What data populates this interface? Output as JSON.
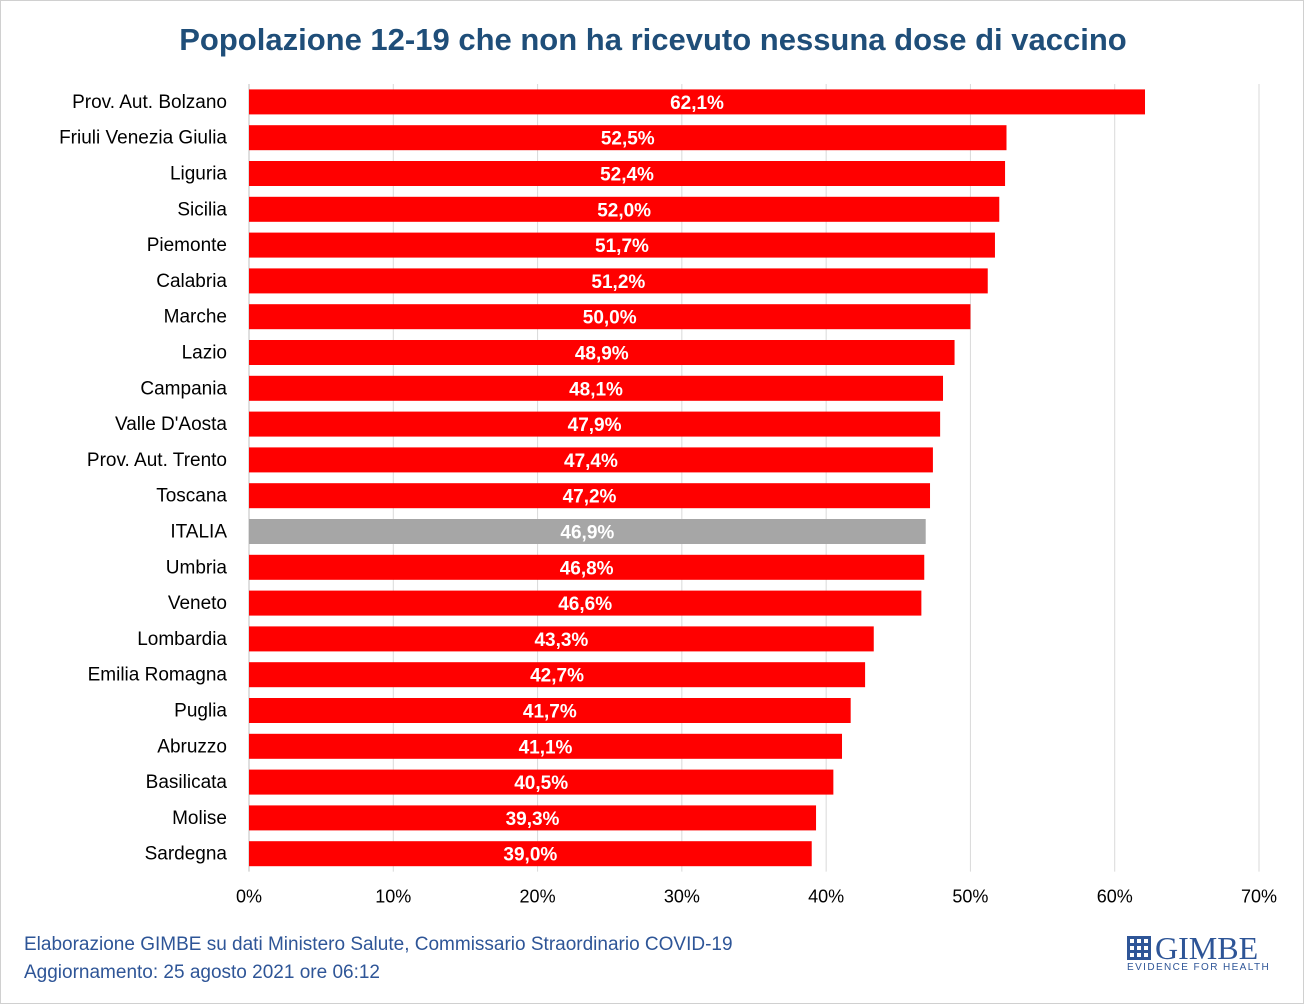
{
  "chart_data": {
    "type": "bar",
    "orientation": "horizontal",
    "title": "Popolazione 12-19 che non ha ricevuto nessuna dose di vaccino",
    "categories": [
      "Prov. Aut. Bolzano",
      "Friuli Venezia Giulia",
      "Liguria",
      "Sicilia",
      "Piemonte",
      "Calabria",
      "Marche",
      "Lazio",
      "Campania",
      "Valle D'Aosta",
      "Prov. Aut. Trento",
      "Toscana",
      "ITALIA",
      "Umbria",
      "Veneto",
      "Lombardia",
      "Emilia Romagna",
      "Puglia",
      "Abruzzo",
      "Basilicata",
      "Molise",
      "Sardegna"
    ],
    "values": [
      62.1,
      52.5,
      52.4,
      52.0,
      51.7,
      51.2,
      50.0,
      48.9,
      48.1,
      47.9,
      47.4,
      47.2,
      46.9,
      46.8,
      46.6,
      43.3,
      42.7,
      41.7,
      41.1,
      40.5,
      39.3,
      39.0
    ],
    "data_labels": [
      "62,1%",
      "52,5%",
      "52,4%",
      "52,0%",
      "51,7%",
      "51,2%",
      "50,0%",
      "48,9%",
      "48,1%",
      "47,9%",
      "47,4%",
      "47,2%",
      "46,9%",
      "46,8%",
      "46,6%",
      "43,3%",
      "42,7%",
      "41,7%",
      "41,1%",
      "40,5%",
      "39,3%",
      "39,0%"
    ],
    "xlim": [
      0,
      70
    ],
    "x_ticks": [
      "0%",
      "10%",
      "20%",
      "30%",
      "40%",
      "50%",
      "60%",
      "70%"
    ],
    "grid": true,
    "colors": {
      "default": "#ff0000",
      "highlight": "#a6a6a6"
    },
    "highlight_category": "ITALIA"
  },
  "footer": {
    "line1_prefix": "Elaborazione GIMBE",
    "line1_rest": " su dati Ministero Salute, Commissario Straordinario COVID-19",
    "line2": "Aggiornamento: 25 agosto 2021 ore 06:12"
  },
  "logo": {
    "word": "GIMBE",
    "tagline": "EVIDENCE FOR HEALTH",
    "color": "#2e5597"
  }
}
